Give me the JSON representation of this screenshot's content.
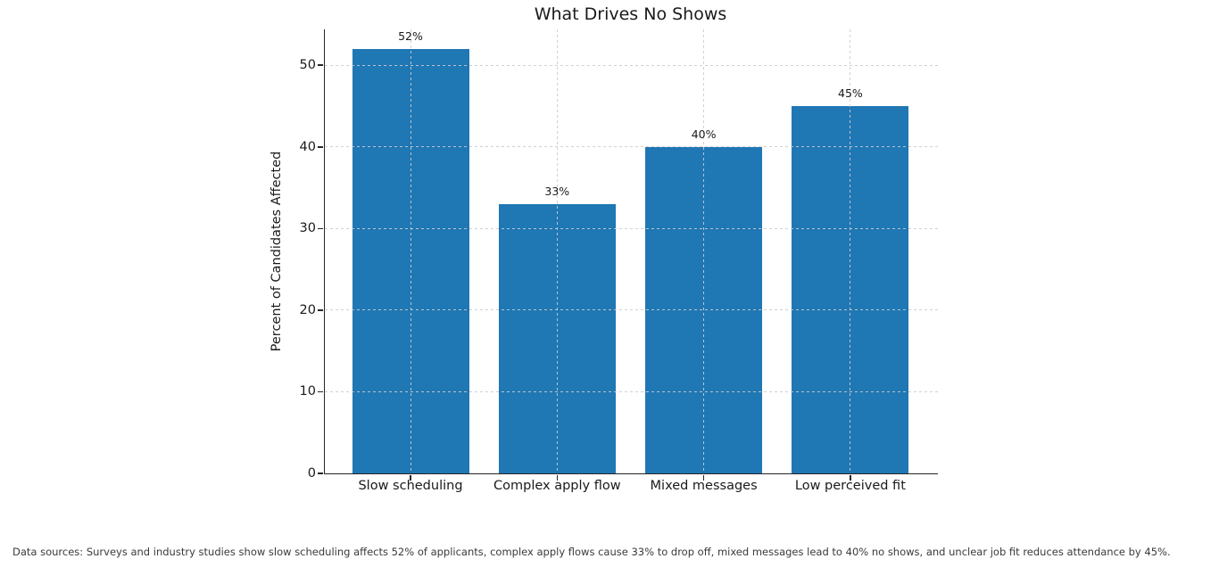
{
  "chart_data": {
    "type": "bar",
    "title": "What Drives No Shows",
    "categories": [
      "Slow scheduling",
      "Complex apply flow",
      "Mixed messages",
      "Low perceived fit"
    ],
    "values": [
      52,
      33,
      40,
      45
    ],
    "value_labels": [
      "52%",
      "33%",
      "40%",
      "45%"
    ],
    "xlabel": "",
    "ylabel": "Percent of Candidates Affected",
    "yticks": [
      0,
      10,
      20,
      30,
      40,
      50
    ],
    "ylim": [
      0,
      54.4
    ],
    "grid": "dashed gridlines on both axes, drawn over bars",
    "legend_position": "none",
    "bar_color": "#1f77b4"
  },
  "colors": {
    "bar": "#1f77b4",
    "gridline": "#cccccc",
    "axis_and_text": "#1a1a1a",
    "footer_text": "#3a3a3a",
    "background": "#ffffff"
  },
  "footer": {
    "text": "Data sources: Surveys and industry studies show slow scheduling affects 52% of applicants, complex apply flows cause 33% to drop off, mixed messages lead to 40% no shows, and unclear job fit reduces attendance by 45%."
  }
}
